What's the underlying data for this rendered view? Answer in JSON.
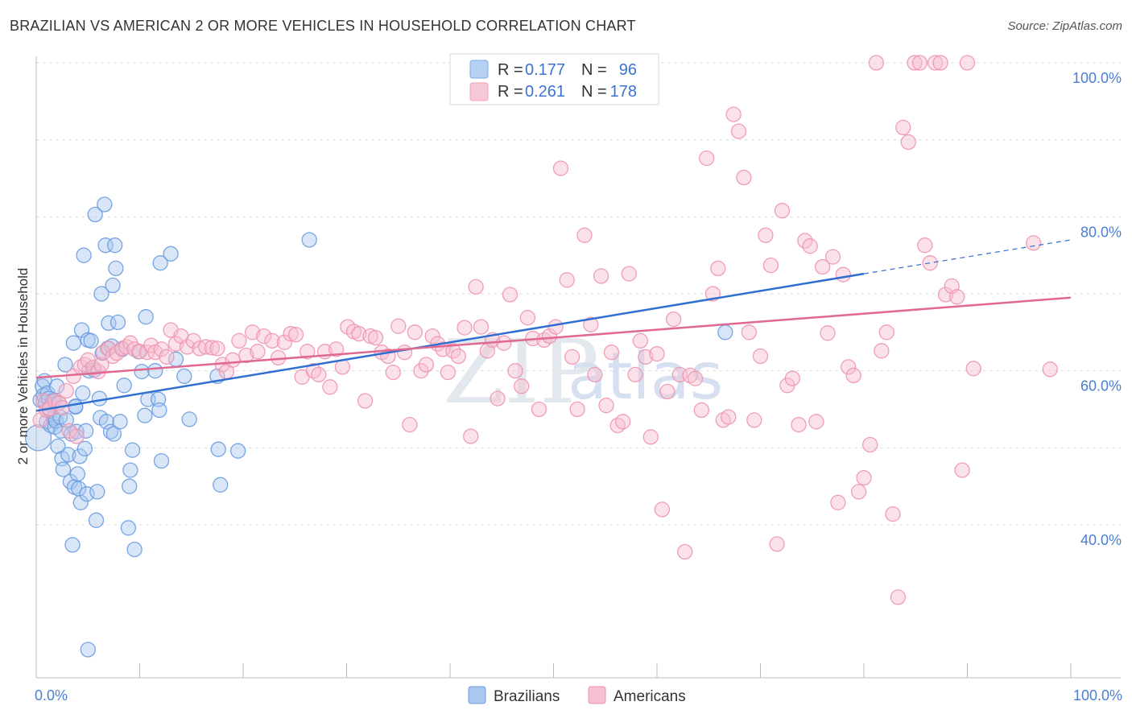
{
  "title": "BRAZILIAN VS AMERICAN 2 OR MORE VEHICLES IN HOUSEHOLD CORRELATION CHART",
  "source": "Source: ZipAtlas.com",
  "watermark": {
    "zip": "ZIP",
    "atlas": "atlas"
  },
  "colors": {
    "blue_fill": "#a9c8f0",
    "blue_stroke": "#6a9be0",
    "blue_line": "#2f6fd0",
    "pink_fill": "#f7bfd0",
    "pink_stroke": "#ee93b0",
    "pink_line": "#e06891",
    "grid": "#dddddd",
    "tick_text": "#4a7fd4"
  },
  "legend": {
    "rows": [
      {
        "r_label": "R =",
        "r_value": "0.177",
        "n_label": "N =",
        "n_value": "96"
      },
      {
        "r_label": "R =",
        "r_value": "0.261",
        "n_label": "N =",
        "n_value": "178"
      }
    ]
  },
  "bottom_legend": [
    "Brazilians",
    "Americans"
  ],
  "chart_data": {
    "type": "scatter",
    "title": "BRAZILIAN VS AMERICAN 2 OR MORE VEHICLES IN HOUSEHOLD CORRELATION CHART",
    "xlabel": "",
    "ylabel": "2 or more Vehicles in Household",
    "xlim": [
      0,
      100
    ],
    "ylim": [
      20,
      102
    ],
    "x_tick_labels": [
      "0.0%",
      "100.0%"
    ],
    "y_ticks": [
      40,
      60,
      80,
      100
    ],
    "y_tick_labels": [
      "40.0%",
      "60.0%",
      "80.0%",
      "100.0%"
    ],
    "grid": true,
    "series": [
      {
        "name": "Brazilians",
        "R": 0.177,
        "N": 96,
        "trend": {
          "x0": 0,
          "y0": 54.8,
          "x1": 80,
          "y1": 72.6,
          "dashed_to_x": 100,
          "dashed_to_y": 77.0
        },
        "points": [
          [
            0.2,
            51.3
          ],
          [
            0.4,
            56.2
          ],
          [
            0.6,
            58.0
          ],
          [
            0.7,
            56.8
          ],
          [
            0.8,
            58.7
          ],
          [
            0.9,
            55.9
          ],
          [
            1.0,
            53.4
          ],
          [
            1.1,
            57.1
          ],
          [
            1.2,
            56.4
          ],
          [
            1.3,
            54.8
          ],
          [
            1.4,
            52.9
          ],
          [
            1.5,
            55.6
          ],
          [
            1.7,
            53.9
          ],
          [
            1.8,
            52.7
          ],
          [
            1.9,
            53.5
          ],
          [
            2.0,
            58.0
          ],
          [
            2.1,
            50.2
          ],
          [
            2.2,
            55.8
          ],
          [
            2.3,
            54.0
          ],
          [
            2.4,
            52.2
          ],
          [
            2.5,
            48.6
          ],
          [
            2.6,
            47.2
          ],
          [
            2.8,
            60.8
          ],
          [
            2.9,
            53.6
          ],
          [
            3.1,
            49.1
          ],
          [
            3.3,
            45.6
          ],
          [
            3.4,
            51.8
          ],
          [
            3.5,
            37.4
          ],
          [
            3.6,
            63.6
          ],
          [
            3.7,
            44.9
          ],
          [
            3.8,
            55.3
          ],
          [
            3.9,
            52.1
          ],
          [
            4.0,
            46.6
          ],
          [
            4.1,
            44.7
          ],
          [
            4.2,
            48.9
          ],
          [
            4.3,
            42.9
          ],
          [
            4.4,
            65.3
          ],
          [
            4.5,
            57.1
          ],
          [
            4.6,
            75.0
          ],
          [
            4.7,
            49.9
          ],
          [
            4.8,
            52.2
          ],
          [
            4.9,
            44.0
          ],
          [
            5.0,
            64.0
          ],
          [
            5.1,
            60.0
          ],
          [
            5.3,
            63.9
          ],
          [
            5.6,
            60.1
          ],
          [
            5.7,
            80.3
          ],
          [
            5.8,
            40.6
          ],
          [
            5.9,
            44.3
          ],
          [
            6.1,
            56.4
          ],
          [
            6.2,
            53.9
          ],
          [
            6.3,
            70.0
          ],
          [
            6.4,
            62.3
          ],
          [
            6.6,
            81.6
          ],
          [
            6.7,
            76.3
          ],
          [
            6.8,
            53.4
          ],
          [
            6.9,
            62.9
          ],
          [
            7.0,
            66.2
          ],
          [
            7.2,
            52.1
          ],
          [
            7.3,
            63.2
          ],
          [
            7.4,
            71.1
          ],
          [
            7.5,
            51.8
          ],
          [
            7.6,
            76.3
          ],
          [
            7.7,
            73.3
          ],
          [
            7.9,
            66.3
          ],
          [
            8.1,
            53.4
          ],
          [
            8.3,
            62.8
          ],
          [
            8.5,
            58.1
          ],
          [
            8.9,
            39.6
          ],
          [
            9.0,
            45.0
          ],
          [
            9.1,
            47.1
          ],
          [
            9.3,
            49.7
          ],
          [
            9.5,
            36.8
          ],
          [
            9.9,
            62.5
          ],
          [
            10.2,
            59.9
          ],
          [
            10.5,
            54.2
          ],
          [
            10.6,
            67.0
          ],
          [
            10.8,
            56.3
          ],
          [
            11.5,
            60.0
          ],
          [
            11.8,
            56.3
          ],
          [
            11.9,
            54.9
          ],
          [
            12.0,
            74.0
          ],
          [
            12.1,
            48.3
          ],
          [
            13.0,
            75.2
          ],
          [
            13.5,
            61.5
          ],
          [
            14.3,
            59.3
          ],
          [
            14.8,
            53.7
          ],
          [
            17.5,
            59.3
          ],
          [
            17.6,
            49.8
          ],
          [
            17.8,
            45.2
          ],
          [
            19.5,
            49.6
          ],
          [
            26.4,
            77.0
          ],
          [
            66.6,
            65.0
          ],
          [
            5.0,
            23.8
          ],
          [
            3.8,
            55.4
          ],
          [
            1.6,
            56.1
          ]
        ]
      },
      {
        "name": "Americans",
        "R": 0.261,
        "N": 178,
        "trend": {
          "x0": 0,
          "y0": 59.1,
          "x1": 100,
          "y1": 69.5
        },
        "points": [
          [
            0.4,
            53.6
          ],
          [
            0.7,
            56.1
          ],
          [
            1.0,
            54.9
          ],
          [
            1.3,
            55.1
          ],
          [
            1.8,
            56.1
          ],
          [
            2.2,
            55.8
          ],
          [
            2.5,
            55.2
          ],
          [
            2.9,
            57.4
          ],
          [
            3.2,
            52.2
          ],
          [
            3.6,
            59.3
          ],
          [
            3.9,
            51.5
          ],
          [
            4.3,
            60.5
          ],
          [
            4.7,
            60.8
          ],
          [
            5.0,
            61.4
          ],
          [
            5.5,
            60.4
          ],
          [
            6.0,
            59.9
          ],
          [
            6.3,
            60.8
          ],
          [
            6.5,
            62.4
          ],
          [
            7.0,
            62.9
          ],
          [
            7.4,
            61.9
          ],
          [
            7.8,
            62.3
          ],
          [
            8.3,
            62.9
          ],
          [
            8.7,
            63.1
          ],
          [
            9.1,
            63.6
          ],
          [
            9.5,
            62.8
          ],
          [
            10.0,
            62.5
          ],
          [
            10.7,
            62.4
          ],
          [
            11.1,
            63.3
          ],
          [
            11.5,
            62.4
          ],
          [
            12.1,
            62.8
          ],
          [
            12.6,
            61.8
          ],
          [
            13.0,
            65.3
          ],
          [
            13.5,
            63.5
          ],
          [
            14.0,
            64.5
          ],
          [
            14.6,
            63.1
          ],
          [
            15.2,
            63.9
          ],
          [
            15.8,
            62.9
          ],
          [
            16.4,
            63.1
          ],
          [
            17.0,
            63.0
          ],
          [
            17.5,
            62.9
          ],
          [
            18.0,
            60.8
          ],
          [
            18.4,
            59.9
          ],
          [
            19.0,
            61.4
          ],
          [
            19.6,
            63.9
          ],
          [
            20.3,
            62.0
          ],
          [
            20.9,
            65.0
          ],
          [
            21.4,
            62.5
          ],
          [
            22.0,
            64.5
          ],
          [
            22.8,
            63.9
          ],
          [
            23.4,
            61.7
          ],
          [
            24.0,
            63.7
          ],
          [
            24.6,
            64.8
          ],
          [
            25.1,
            64.7
          ],
          [
            25.7,
            59.2
          ],
          [
            26.2,
            62.5
          ],
          [
            26.8,
            60.0
          ],
          [
            27.3,
            59.5
          ],
          [
            27.9,
            62.5
          ],
          [
            28.4,
            57.9
          ],
          [
            29.0,
            62.8
          ],
          [
            29.6,
            60.5
          ],
          [
            30.1,
            65.7
          ],
          [
            30.7,
            65.1
          ],
          [
            31.2,
            64.8
          ],
          [
            31.8,
            56.1
          ],
          [
            32.3,
            64.5
          ],
          [
            32.8,
            64.3
          ],
          [
            33.4,
            62.4
          ],
          [
            34.0,
            61.9
          ],
          [
            34.5,
            59.8
          ],
          [
            35.0,
            65.8
          ],
          [
            35.6,
            62.4
          ],
          [
            36.1,
            53.0
          ],
          [
            36.6,
            65.0
          ],
          [
            37.2,
            60.0
          ],
          [
            37.7,
            60.8
          ],
          [
            38.3,
            64.5
          ],
          [
            38.8,
            63.5
          ],
          [
            39.3,
            62.8
          ],
          [
            39.8,
            59.8
          ],
          [
            40.3,
            62.6
          ],
          [
            40.8,
            61.9
          ],
          [
            41.4,
            65.6
          ],
          [
            42.0,
            51.5
          ],
          [
            42.5,
            70.9
          ],
          [
            43.0,
            65.7
          ],
          [
            43.6,
            62.6
          ],
          [
            44.1,
            64.0
          ],
          [
            44.6,
            56.4
          ],
          [
            45.2,
            63.6
          ],
          [
            45.8,
            69.9
          ],
          [
            46.3,
            60.0
          ],
          [
            46.9,
            58.0
          ],
          [
            47.5,
            66.9
          ],
          [
            48.0,
            64.2
          ],
          [
            48.6,
            55.0
          ],
          [
            49.1,
            64.0
          ],
          [
            49.6,
            64.5
          ],
          [
            50.2,
            65.7
          ],
          [
            50.7,
            86.3
          ],
          [
            51.3,
            71.8
          ],
          [
            51.8,
            61.8
          ],
          [
            52.3,
            55.0
          ],
          [
            53.0,
            77.6
          ],
          [
            53.6,
            66.0
          ],
          [
            54.0,
            59.5
          ],
          [
            54.6,
            72.3
          ],
          [
            55.1,
            55.5
          ],
          [
            55.6,
            62.4
          ],
          [
            56.2,
            52.9
          ],
          [
            56.7,
            53.4
          ],
          [
            57.3,
            72.6
          ],
          [
            57.9,
            59.5
          ],
          [
            58.4,
            63.9
          ],
          [
            58.9,
            61.8
          ],
          [
            59.4,
            51.4
          ],
          [
            60.0,
            62.2
          ],
          [
            60.5,
            42.0
          ],
          [
            61.0,
            57.3
          ],
          [
            61.6,
            66.7
          ],
          [
            62.2,
            59.5
          ],
          [
            62.7,
            36.5
          ],
          [
            63.2,
            59.4
          ],
          [
            63.7,
            59.0
          ],
          [
            64.3,
            54.9
          ],
          [
            64.8,
            87.6
          ],
          [
            65.4,
            70.0
          ],
          [
            65.9,
            73.3
          ],
          [
            66.4,
            53.6
          ],
          [
            66.9,
            54.0
          ],
          [
            67.4,
            93.3
          ],
          [
            67.9,
            91.1
          ],
          [
            68.4,
            85.1
          ],
          [
            68.9,
            65.0
          ],
          [
            69.4,
            53.6
          ],
          [
            70.0,
            61.9
          ],
          [
            70.5,
            77.6
          ],
          [
            71.0,
            73.7
          ],
          [
            71.6,
            37.5
          ],
          [
            72.1,
            80.8
          ],
          [
            72.6,
            58.1
          ],
          [
            73.1,
            59.0
          ],
          [
            73.7,
            53.0
          ],
          [
            74.3,
            76.9
          ],
          [
            74.8,
            76.2
          ],
          [
            75.4,
            53.4
          ],
          [
            76.0,
            73.5
          ],
          [
            76.5,
            64.9
          ],
          [
            77.0,
            74.8
          ],
          [
            77.5,
            42.9
          ],
          [
            78.0,
            72.5
          ],
          [
            78.5,
            60.5
          ],
          [
            79.0,
            59.4
          ],
          [
            79.5,
            44.3
          ],
          [
            80.0,
            46.1
          ],
          [
            80.6,
            50.4
          ],
          [
            81.2,
            100.0
          ],
          [
            81.7,
            62.6
          ],
          [
            82.2,
            65.0
          ],
          [
            82.8,
            41.4
          ],
          [
            83.3,
            30.6
          ],
          [
            83.8,
            91.6
          ],
          [
            84.3,
            89.7
          ],
          [
            84.9,
            100.0
          ],
          [
            85.4,
            100.0
          ],
          [
            85.9,
            76.3
          ],
          [
            86.4,
            74.0
          ],
          [
            86.9,
            100.0
          ],
          [
            87.4,
            100.0
          ],
          [
            87.9,
            69.9
          ],
          [
            88.5,
            71.0
          ],
          [
            89.0,
            69.6
          ],
          [
            89.5,
            47.1
          ],
          [
            90.0,
            100.0
          ],
          [
            90.6,
            60.3
          ],
          [
            96.4,
            76.6
          ],
          [
            98.0,
            60.2
          ]
        ]
      }
    ]
  }
}
